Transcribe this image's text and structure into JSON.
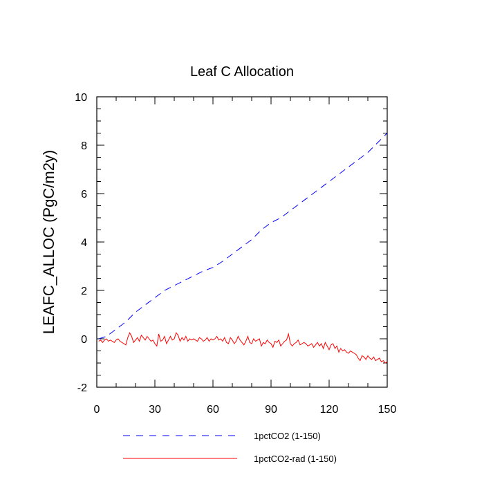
{
  "chart_data": {
    "type": "line",
    "title": "Leaf C Allocation",
    "xlabel": "",
    "ylabel": "LEAFC_ALLOC  (PgC/m2y)",
    "xlim": [
      0,
      150
    ],
    "ylim": [
      -2,
      10
    ],
    "x_ticks": [
      "0",
      "30",
      "60",
      "90",
      "120",
      "150"
    ],
    "y_ticks": [
      "-2",
      "0",
      "2",
      "4",
      "6",
      "8",
      "10"
    ],
    "grid": false,
    "legend_position": "bottom",
    "series": [
      {
        "name": "1pctCO2 (1-150)",
        "color": "#0000ff",
        "dash": "dashed",
        "x": [
          1,
          5,
          10,
          15,
          20,
          25,
          30,
          35,
          40,
          45,
          50,
          55,
          60,
          65,
          70,
          75,
          80,
          85,
          90,
          95,
          100,
          105,
          110,
          115,
          120,
          125,
          130,
          135,
          140,
          145,
          150
        ],
        "values": [
          0.0,
          0.1,
          0.4,
          0.7,
          1.1,
          1.4,
          1.7,
          2.0,
          2.2,
          2.4,
          2.6,
          2.8,
          2.95,
          3.2,
          3.5,
          3.8,
          4.1,
          4.5,
          4.8,
          5.0,
          5.3,
          5.6,
          5.9,
          6.2,
          6.5,
          6.8,
          7.1,
          7.4,
          7.7,
          8.1,
          8.5
        ]
      },
      {
        "name": "1pctCO2-rad (1-150)",
        "color": "#ff0000",
        "dash": "solid",
        "x": [
          1,
          2,
          3,
          4,
          5,
          6,
          7,
          8,
          9,
          10,
          11,
          12,
          13,
          14,
          15,
          16,
          17,
          18,
          19,
          20,
          21,
          22,
          23,
          24,
          25,
          26,
          27,
          28,
          29,
          30,
          31,
          32,
          33,
          34,
          35,
          36,
          37,
          38,
          39,
          40,
          41,
          42,
          43,
          44,
          45,
          46,
          47,
          48,
          49,
          50,
          51,
          52,
          53,
          54,
          55,
          56,
          57,
          58,
          59,
          60,
          61,
          62,
          63,
          64,
          65,
          66,
          67,
          68,
          69,
          70,
          71,
          72,
          73,
          74,
          75,
          76,
          77,
          78,
          79,
          80,
          81,
          82,
          83,
          84,
          85,
          86,
          87,
          88,
          89,
          90,
          91,
          92,
          93,
          94,
          95,
          96,
          97,
          98,
          99,
          100,
          101,
          102,
          103,
          104,
          105,
          106,
          107,
          108,
          109,
          110,
          111,
          112,
          113,
          114,
          115,
          116,
          117,
          118,
          119,
          120,
          121,
          122,
          123,
          124,
          125,
          126,
          127,
          128,
          129,
          130,
          131,
          132,
          133,
          134,
          135,
          136,
          137,
          138,
          139,
          140,
          141,
          142,
          143,
          144,
          145,
          146,
          147,
          148,
          149,
          150
        ],
        "values": [
          -0.1,
          -0.05,
          -0.15,
          -0.05,
          0.0,
          -0.1,
          -0.05,
          -0.1,
          -0.15,
          -0.05,
          0.0,
          -0.1,
          -0.15,
          -0.2,
          -0.25,
          0.05,
          0.25,
          0.1,
          -0.15,
          -0.05,
          0.05,
          -0.1,
          0.15,
          0.05,
          -0.05,
          0.1,
          0.0,
          -0.1,
          -0.05,
          -0.2,
          -0.3,
          0.2,
          -0.1,
          -0.05,
          0.1,
          -0.2,
          -0.05,
          0.1,
          -0.05,
          0.0,
          0.25,
          0.15,
          -0.1,
          0.05,
          -0.05,
          0.1,
          -0.1,
          0.0,
          -0.05,
          0.0,
          -0.05,
          -0.1,
          0.05,
          0.0,
          -0.1,
          -0.05,
          0.05,
          -0.1,
          0.0,
          -0.05,
          0.0,
          0.1,
          -0.05,
          0.0,
          -0.1,
          0.05,
          -0.15,
          -0.2,
          0.05,
          -0.05,
          -0.2,
          -0.1,
          0.1,
          -0.05,
          -0.15,
          -0.25,
          -0.1,
          0.1,
          -0.15,
          -0.2,
          0.0,
          -0.1,
          -0.05,
          0.0,
          -0.3,
          -0.15,
          -0.2,
          -0.05,
          -0.15,
          -0.2,
          -0.35,
          -0.1,
          -0.15,
          -0.05,
          -0.3,
          -0.2,
          -0.1,
          -0.05,
          0.2,
          -0.2,
          -0.3,
          -0.2,
          -0.15,
          -0.05,
          -0.25,
          -0.2,
          -0.15,
          -0.2,
          -0.3,
          -0.25,
          -0.2,
          -0.35,
          -0.25,
          -0.15,
          -0.3,
          -0.2,
          -0.4,
          -0.15,
          -0.3,
          -0.45,
          -0.25,
          -0.2,
          -0.4,
          -0.3,
          -0.55,
          -0.4,
          -0.5,
          -0.45,
          -0.55,
          -0.6,
          -0.5,
          -0.55,
          -0.6,
          -0.65,
          -0.8,
          -0.9,
          -0.7,
          -0.75,
          -0.85,
          -0.7,
          -0.8,
          -0.85,
          -0.75,
          -0.9,
          -0.85,
          -0.8,
          -0.95,
          -0.9,
          -1.0,
          -0.95
        ]
      }
    ]
  }
}
